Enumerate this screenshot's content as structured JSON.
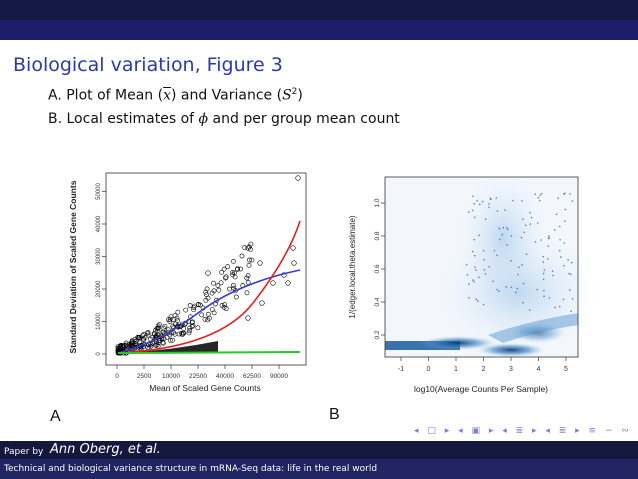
{
  "slide": {
    "title": "Biological variation, Figure 3",
    "line1": {
      "a": "A. Plot of Mean (",
      "xbar": "x",
      "b": ") and Variance (",
      "s": "S",
      "sup": "2",
      "c": ")"
    },
    "line2": {
      "a": "B. Local estimates of ",
      "phi": "ϕ",
      "b": " and per group mean count"
    }
  },
  "figure": {
    "panel_a": {
      "label": "A",
      "xlabel": "Mean of Scaled Gene Counts",
      "ylabel": "Standard Deviation of Scaled Gene Counts",
      "xticks": [
        "0",
        "2500",
        "10000",
        "22500",
        "40000",
        "62500",
        "90000"
      ],
      "yticks": [
        "0",
        "10000",
        "20000",
        "30000",
        "40000",
        "50000"
      ],
      "colors": {
        "red": "#e02020",
        "blue": "#3a3acc",
        "green": "#22cc22",
        "points": "#000000"
      }
    },
    "panel_b": {
      "label": "B",
      "xlabel": "log10(Average Counts Per Sample)",
      "ylabel": "1/(edger.local.theta.estimate)",
      "xticks": [
        "-1",
        "0",
        "1",
        "2",
        "3",
        "4",
        "5"
      ],
      "yticks": [
        "0.2",
        "0.4",
        "0.6",
        "0.8",
        "1.0"
      ],
      "colors": {
        "density": "#1f64a8"
      }
    }
  },
  "nav": {
    "symbols": "◂ □ ▸ ◂ ▣ ▸ ◂ ≣ ▸ ◂ ≣ ▸ ≡ ∽ ∾ ∿"
  },
  "footer": {
    "prefix": "Paper by",
    "author": "Ann Oberg, et al.",
    "title": "Technical and biological variance structure in mRNA-Seq data: life in the real world"
  }
}
